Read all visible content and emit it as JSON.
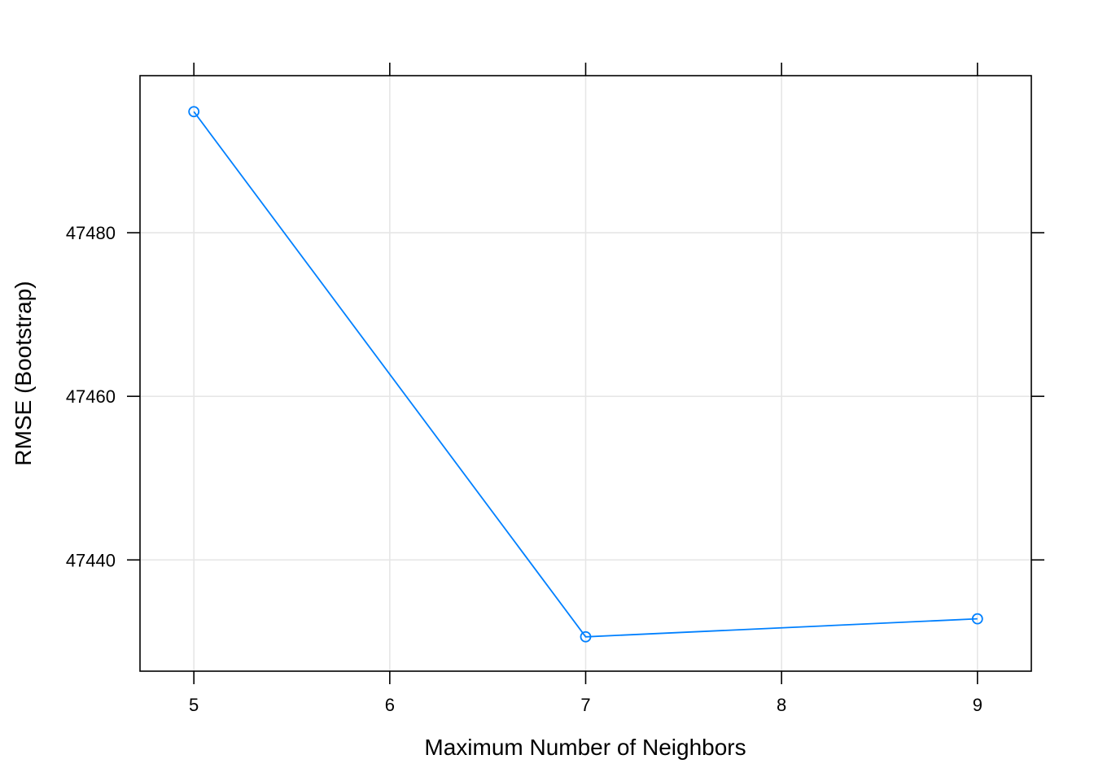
{
  "chart_data": {
    "type": "line",
    "title": "",
    "xlabel": "Maximum Number of Neighbors",
    "ylabel": "RMSE (Bootstrap)",
    "x": [
      5,
      7,
      9
    ],
    "series": [
      {
        "values": [
          47494.8,
          47430.6,
          47432.8
        ]
      }
    ],
    "xlim": [
      4.725,
      9.275
    ],
    "ylim": [
      47426.4,
      47499.2
    ],
    "xticks": [
      5,
      6,
      7,
      8,
      9
    ],
    "xtick_labels": [
      "5",
      "6",
      "7",
      "8",
      "9"
    ],
    "yticks": [
      47440,
      47460,
      47480
    ],
    "ytick_labels": [
      "47440",
      "47460",
      "47480"
    ],
    "grid": true,
    "colors": {
      "series": "#0080ff",
      "grid": "#e6e6e6",
      "axis": "#000000"
    }
  }
}
